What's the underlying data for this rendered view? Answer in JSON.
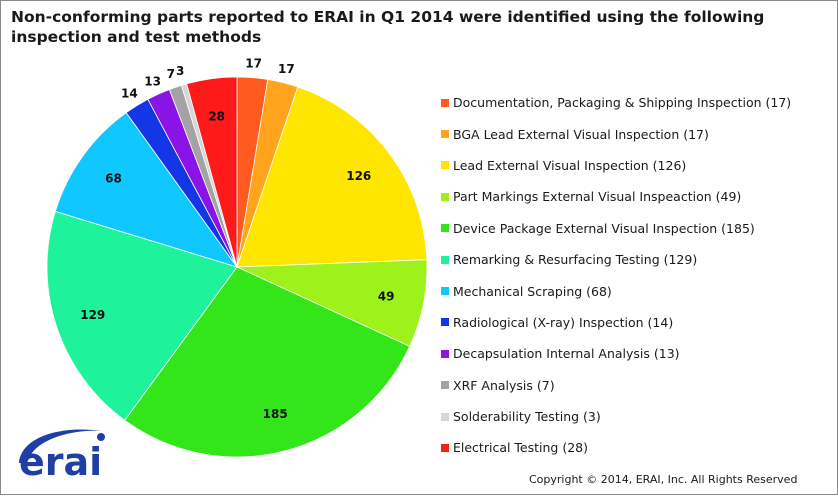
{
  "title": "Non-conforming parts reported to ERAI in Q1 2014 were identified using the following inspection and test methods",
  "copyright": "Copyright © 2014, ERAI, Inc.  All Rights Reserved",
  "logo_text": "erai",
  "logo_color": "#1f3fa6",
  "chart_data": {
    "type": "pie",
    "legend_position": "right",
    "slices": [
      {
        "value": 17,
        "label": "17",
        "legend": "Documentation, Packaging & Shipping Inspection (17)",
        "color": "#ff5a1f"
      },
      {
        "value": 17,
        "label": "17",
        "legend": "BGA Lead External Visual Inspection (17)",
        "color": "#ffa41c"
      },
      {
        "value": 126,
        "label": "126",
        "legend": "Lead External Visual Inspection (126)",
        "color": "#ffe600"
      },
      {
        "value": 49,
        "label": "49",
        "legend": "Part Markings External Visual Inspeaction (49)",
        "color": "#9cf21a"
      },
      {
        "value": 185,
        "label": "185",
        "legend": "Device Package External Visual Inspection (185)",
        "color": "#33e61a"
      },
      {
        "value": 129,
        "label": "129",
        "legend": "Remarking & Resurfacing Testing (129)",
        "color": "#1ef29a"
      },
      {
        "value": 68,
        "label": "68",
        "legend": "Mechanical Scraping (68)",
        "color": "#10c8ff"
      },
      {
        "value": 14,
        "label": "14",
        "legend": "Radiological (X-ray) Inspection (14)",
        "color": "#1536e6"
      },
      {
        "value": 13,
        "label": "13",
        "legend": "Decapsulation Internal Analysis (13)",
        "color": "#8a14e6"
      },
      {
        "value": 7,
        "label": "7",
        "legend": "XRF Analysis (7)",
        "color": "#a3a3a3"
      },
      {
        "value": 3,
        "label": "3",
        "legend": "Solderability Testing (3)",
        "color": "#d6d6d6"
      },
      {
        "value": 28,
        "label": "28",
        "legend": "Electrical Testing (28)",
        "color": "#ff1a1a"
      }
    ]
  }
}
